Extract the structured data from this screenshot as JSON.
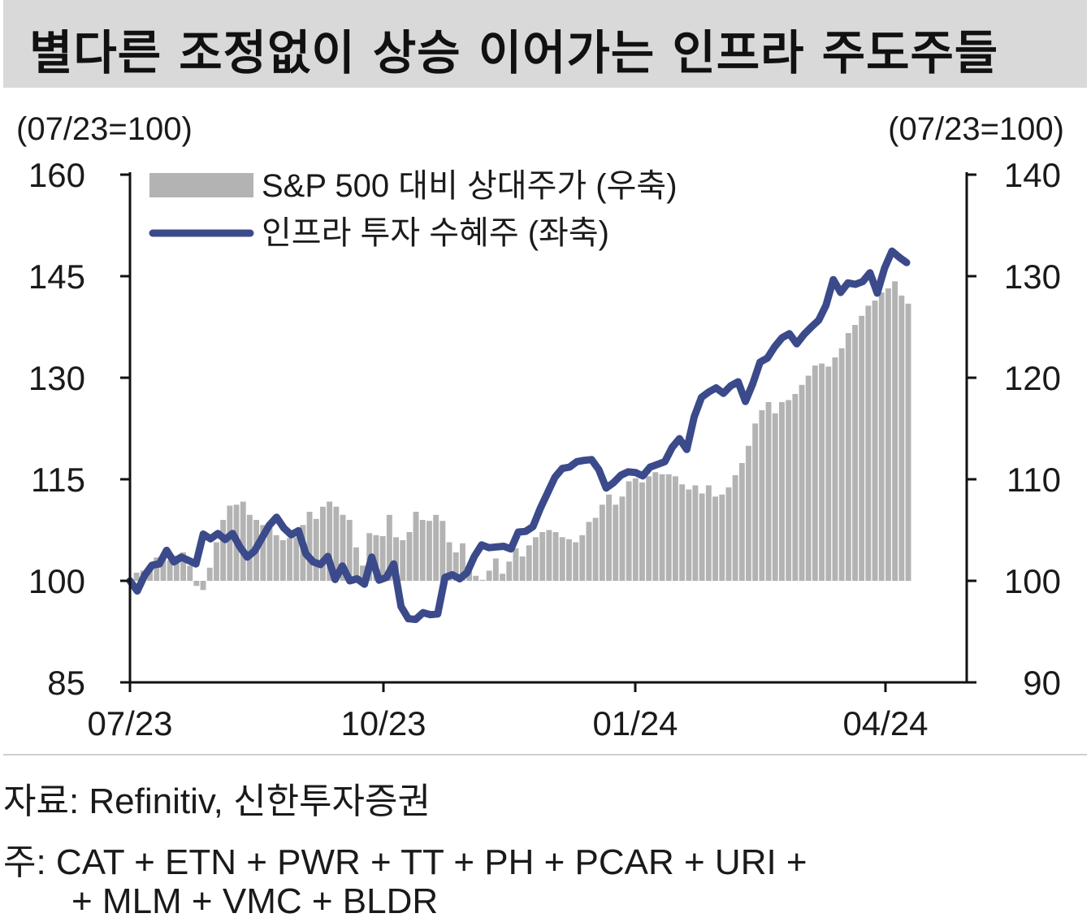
{
  "title": "별다른 조정없이 상승 이어가는 인프라 주도주들",
  "chart_data": {
    "type": "line+bar",
    "left_axis_unit": "(07/23=100)",
    "right_axis_unit": "(07/23=100)",
    "left_ylim": [
      85,
      160
    ],
    "left_yticks": [
      "160",
      "145",
      "130",
      "115",
      "100",
      "85"
    ],
    "right_ylim": [
      90,
      140
    ],
    "right_yticks": [
      "140",
      "130",
      "120",
      "110",
      "100",
      "90"
    ],
    "xticks": [
      "07/23",
      "10/23",
      "01/24",
      "04/24"
    ],
    "legend": [
      {
        "label": "S&P 500 대비 상대주가 (우축)",
        "color": "#b3b3b3",
        "kind": "bar"
      },
      {
        "label": "인프라 투자 수혜주 (좌축)",
        "color": "#3b4a8a",
        "kind": "line"
      }
    ],
    "series": [
      {
        "name": "인프라 투자 수혜주 (좌축)",
        "axis": "left",
        "color": "#3b4a8a",
        "values": [
          100,
          98.5,
          100.8,
          102.3,
          102.5,
          104.5,
          102.8,
          103.5,
          103,
          102.5,
          106.9,
          106.2,
          107,
          106.1,
          107,
          105,
          103.5,
          104.4,
          106.3,
          108.2,
          109.4,
          107.8,
          106.8,
          107.4,
          104,
          102.8,
          102.4,
          103.6,
          100.2,
          102.2,
          100,
          100.3,
          99.5,
          103.5,
          100.1,
          100.5,
          102.5,
          96.2,
          94.4,
          94.3,
          95.3,
          95,
          95.1,
          100.5,
          100.9,
          100.3,
          101.2,
          103.6,
          105.3,
          104.9,
          105,
          105.1,
          104.7,
          107.2,
          107.3,
          108,
          110.7,
          113,
          115.3,
          116.6,
          116.8,
          117.6,
          117.8,
          117.9,
          116.4,
          113.7,
          114.5,
          115.6,
          116.1,
          116,
          115.5,
          116.8,
          117.2,
          117.6,
          119.7,
          121,
          119.4,
          124.2,
          127.1,
          127.9,
          128.5,
          127.7,
          128.8,
          129.4,
          126.5,
          129.1,
          132.3,
          132.9,
          134.6,
          135.9,
          136.5,
          135,
          136.4,
          137.5,
          138.5,
          140.7,
          144.5,
          142.6,
          144,
          143.8,
          144.2,
          145.5,
          142.5,
          146.2,
          148.7,
          147.8,
          147
        ]
      },
      {
        "name": "S&P 500 대비 상대주가 (우축)",
        "axis": "right",
        "color": "#b3b3b3",
        "values": [
          100,
          100.8,
          101,
          101.5,
          102.3,
          102.2,
          102,
          102.5,
          102.8,
          101.5,
          99.5,
          99.1,
          101.3,
          103.8,
          106,
          107.4,
          107.5,
          107.8,
          106.5,
          106,
          105.5,
          105.5,
          104.5,
          104,
          104.2,
          104.3,
          105.5,
          106.8,
          106.1,
          107.3,
          107.8,
          107.3,
          106.5,
          106,
          103.3,
          101.5,
          104.7,
          104.5,
          104.4,
          106.5,
          104.3,
          104,
          104.8,
          106.8,
          106,
          105.9,
          106.5,
          105.9,
          103.8,
          102.8,
          103.7,
          101,
          100.5,
          100.1,
          101,
          102.2,
          100.7,
          101.9,
          103.2,
          102.4,
          103.5,
          104.3,
          104.8,
          105,
          104.8,
          104.3,
          104.1,
          103.8,
          104.5,
          105.8,
          106.2,
          107.5,
          108.5,
          107.5,
          108.3,
          109.8,
          110.1,
          109.7,
          110.3,
          110.7,
          110.5,
          110.5,
          110.3,
          109.5,
          109,
          109.4,
          108.6,
          109.4,
          108.3,
          108.5,
          109.2,
          110.4,
          111.6,
          113.3,
          115.5,
          116.8,
          117.6,
          116.5,
          117.6,
          117.8,
          118.4,
          119.3,
          120.2,
          121.2,
          121.4,
          121.1,
          122,
          122.9,
          124.4,
          125.2,
          126.1,
          127.1,
          127.6,
          128.4,
          128.8,
          129.5,
          128.1,
          127.3
        ]
      }
    ]
  },
  "source": "자료: Refinitiv, 신한투자증권",
  "note_line1": "주: CAT + ETN + PWR + TT + PH + PCAR + URI +",
  "note_line2": "+ MLM + VMC + BLDR"
}
